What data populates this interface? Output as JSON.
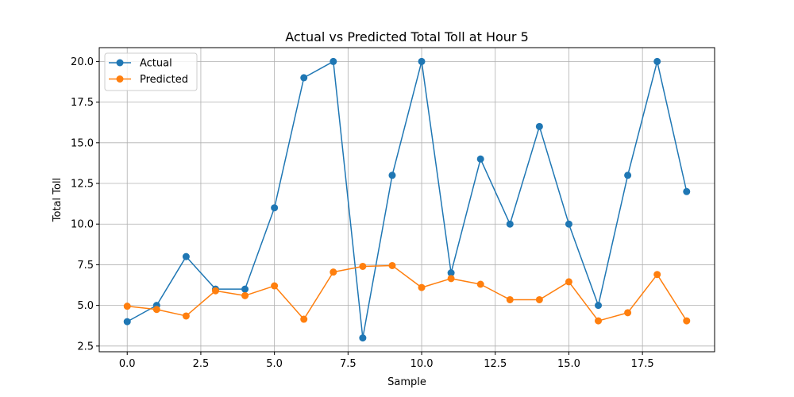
{
  "chart_data": {
    "type": "line",
    "title": "Actual vs Predicted Total Toll at Hour 5",
    "xlabel": "Sample",
    "ylabel": "Total Toll",
    "x": [
      0,
      1,
      2,
      3,
      4,
      5,
      6,
      7,
      8,
      9,
      10,
      11,
      12,
      13,
      14,
      15,
      16,
      17,
      18,
      19
    ],
    "xlim": [
      -0.95,
      19.95
    ],
    "ylim": [
      2.15,
      20.85
    ],
    "xticks": [
      0,
      2.5,
      5,
      7.5,
      10,
      12.5,
      15,
      17.5
    ],
    "xtick_labels": [
      "0.0",
      "2.5",
      "5.0",
      "7.5",
      "10.0",
      "12.5",
      "15.0",
      "17.5"
    ],
    "yticks": [
      2.5,
      5,
      7.5,
      10,
      12.5,
      15,
      17.5,
      20
    ],
    "ytick_labels": [
      "2.5",
      "5.0",
      "7.5",
      "10.0",
      "12.5",
      "15.0",
      "17.5",
      "20.0"
    ],
    "grid": true,
    "legend_position": "upper-left",
    "series": [
      {
        "name": "Actual",
        "color": "#1f77b4",
        "marker": "circle",
        "values": [
          4,
          5,
          8,
          6,
          6,
          11,
          19,
          20,
          3,
          13,
          20,
          7,
          14,
          10,
          16,
          10,
          5,
          13,
          20,
          12
        ]
      },
      {
        "name": "Predicted",
        "color": "#ff7f0e",
        "marker": "circle",
        "values": [
          4.95,
          4.75,
          4.35,
          5.9,
          5.6,
          6.2,
          4.15,
          7.05,
          7.4,
          7.45,
          6.1,
          6.65,
          6.3,
          5.35,
          5.35,
          6.45,
          4.05,
          4.55,
          6.9,
          4.05
        ]
      }
    ]
  }
}
